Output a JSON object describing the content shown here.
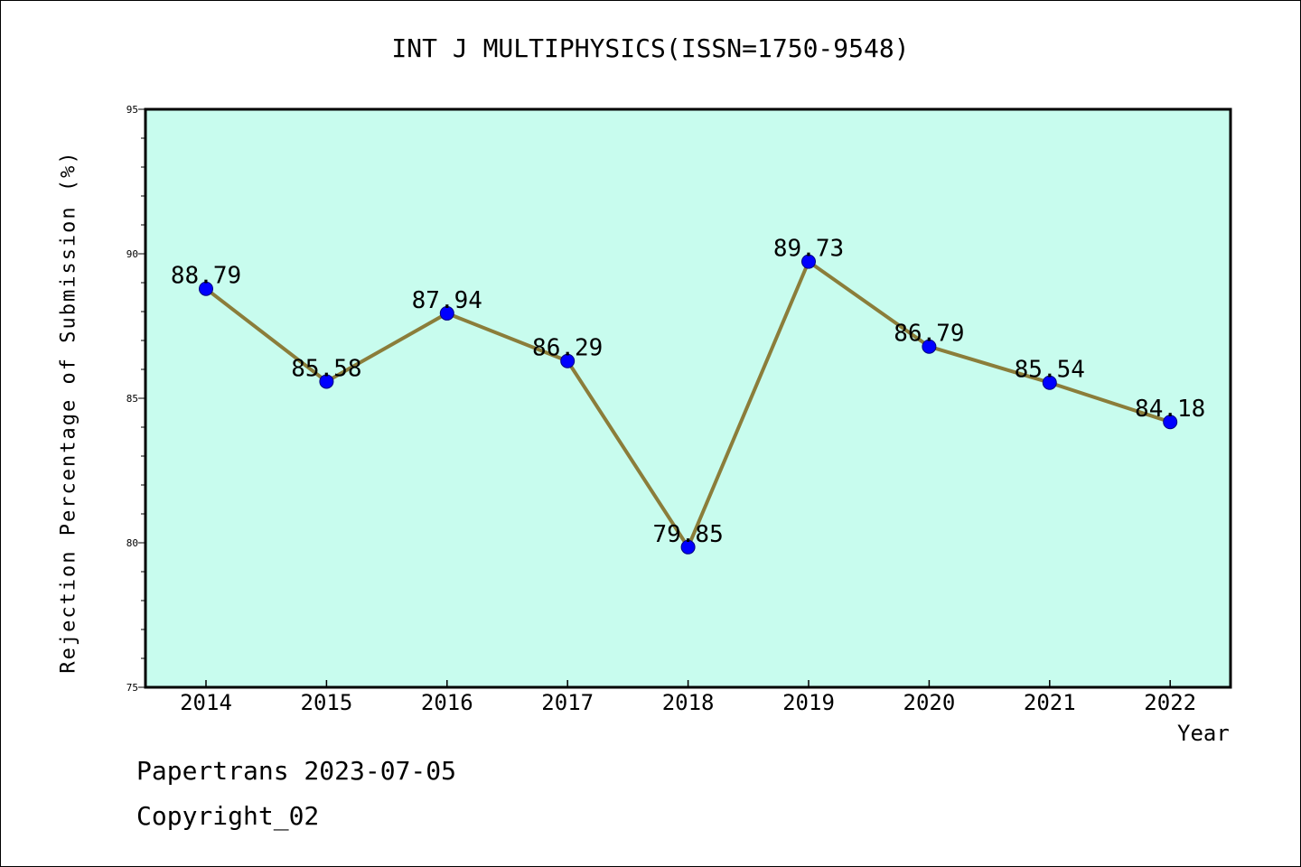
{
  "chart_data": {
    "type": "line",
    "title": "INT J MULTIPHYSICS(ISSN=1750-9548)",
    "xlabel": "Year",
    "ylabel": "Rejection Percentage of Submission (%)",
    "categories": [
      "2014",
      "2015",
      "2016",
      "2017",
      "2018",
      "2019",
      "2020",
      "2021",
      "2022"
    ],
    "values": [
      88.79,
      85.58,
      87.94,
      86.29,
      79.85,
      89.73,
      86.79,
      85.54,
      84.18
    ],
    "data_labels": [
      "88.79",
      "85.58",
      "87.94",
      "86.29",
      "79.85",
      "89.73",
      "86.79",
      "85.54",
      "84.18"
    ],
    "ylim": [
      75,
      95
    ],
    "yticks": [
      75,
      80,
      85,
      90,
      95
    ],
    "grid": false,
    "colors": {
      "plot_background": "#c8fcee",
      "line": "#8b7d3a",
      "marker": "#0000ff"
    }
  },
  "footer": {
    "line1": "Papertrans 2023-07-05",
    "line2": "Copyright_02"
  }
}
